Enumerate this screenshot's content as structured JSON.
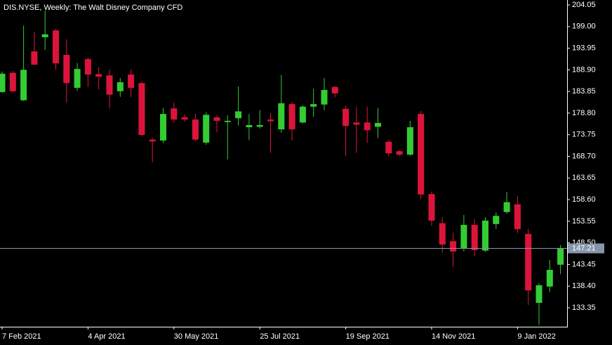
{
  "chart_data": {
    "type": "candlestick",
    "title": "DIS.NYSE, Weekly:  The Walt Disney Company CFD",
    "categories": [
      "7 Feb 2021",
      null,
      null,
      null,
      null,
      null,
      null,
      null,
      "4 Apr 2021",
      null,
      null,
      null,
      null,
      null,
      null,
      null,
      "30 May 2021",
      null,
      null,
      null,
      null,
      null,
      null,
      null,
      "25 Jul 2021",
      null,
      null,
      null,
      null,
      null,
      null,
      null,
      "19 Sep 2021",
      null,
      null,
      null,
      null,
      null,
      null,
      null,
      "14 Nov 2021",
      null,
      null,
      null,
      null,
      null,
      null,
      null,
      "9 Jan 2022",
      null,
      null,
      null,
      null
    ],
    "open": [
      183.7,
      188.2,
      181.8,
      193.2,
      196.5,
      198.1,
      192.4,
      184.7,
      191.4,
      187.9,
      187.6,
      183.9,
      187.8,
      185.8,
      172.6,
      172.4,
      179.9,
      177.8,
      177.3,
      171.9,
      177.8,
      176.7,
      177.6,
      175.5,
      175.6,
      177.3,
      175.0,
      180.9,
      176.6,
      180.3,
      180.8,
      184.9,
      179.8,
      176.6,
      176.6,
      175.6,
      172.1,
      169.9,
      169.1,
      178.6,
      159.9,
      153.1,
      148.9,
      147.3,
      152.7,
      146.7,
      152.9,
      155.7,
      157.5,
      150.6,
      134.5,
      138.3,
      143.4
    ],
    "high": [
      188.5,
      188.6,
      199.2,
      197.8,
      202.7,
      198.5,
      196.0,
      190.5,
      191.8,
      189.5,
      188.9,
      187.0,
      189.0,
      186.2,
      173.0,
      180.0,
      181.2,
      178.5,
      178.6,
      179.0,
      178.3,
      178.3,
      185.0,
      178.6,
      179.5,
      178.8,
      187.7,
      181.4,
      180.6,
      184.5,
      187.0,
      185.1,
      180.5,
      180.2,
      180.3,
      180.0,
      172.6,
      170.1,
      177.0,
      179.3,
      160.5,
      154.5,
      150.9,
      155.0,
      154.0,
      154.5,
      155.6,
      160.4,
      159.4,
      151.8,
      139.0,
      144.5,
      148.0
    ],
    "low": [
      183.5,
      183.6,
      181.6,
      190.0,
      193.5,
      189.0,
      181.2,
      184.0,
      184.9,
      184.3,
      179.9,
      182.6,
      182.6,
      173.4,
      167.3,
      171.8,
      176.5,
      176.8,
      172.2,
      171.4,
      174.3,
      168.0,
      175.9,
      172.5,
      175.2,
      169.5,
      174.2,
      172.4,
      176.4,
      177.9,
      179.5,
      182.5,
      168.7,
      169.5,
      171.8,
      173.0,
      168.7,
      168.7,
      168.8,
      158.7,
      152.5,
      146.2,
      142.8,
      146.5,
      145.4,
      146.4,
      151.8,
      155.3,
      150.8,
      134.0,
      129.3,
      137.0,
      141.2
    ],
    "close": [
      188.0,
      183.9,
      188.9,
      190.1,
      197.2,
      190.4,
      185.8,
      189.1,
      187.8,
      187.3,
      183.1,
      186.0,
      184.7,
      173.7,
      172.2,
      178.6,
      177.3,
      177.3,
      172.6,
      178.4,
      177.0,
      177.0,
      179.2,
      176.0,
      176.0,
      176.9,
      181.1,
      175.0,
      180.3,
      180.9,
      184.2,
      183.4,
      175.8,
      176.1,
      174.8,
      176.5,
      169.4,
      169.1,
      175.5,
      159.8,
      153.7,
      148.1,
      146.5,
      152.7,
      146.8,
      153.7,
      154.8,
      158.0,
      151.7,
      137.4,
      138.6,
      142.2,
      147.2
    ],
    "up_color": "#33cc33",
    "down_color": "#dc143c",
    "last_price": 147.21,
    "last_price_color": "#8696aa",
    "ylim": [
      128.92,
      205.2
    ],
    "yticks": [
      {
        "value": 133.35,
        "label": "133.35"
      },
      {
        "value": 138.4,
        "label": "138.40"
      },
      {
        "value": 143.45,
        "label": "143.45"
      },
      {
        "value": 148.5,
        "label": "148.50"
      },
      {
        "value": 153.55,
        "label": "153.55"
      },
      {
        "value": 158.6,
        "label": "158.60"
      },
      {
        "value": 163.65,
        "label": "163.65"
      },
      {
        "value": 168.7,
        "label": "168.70"
      },
      {
        "value": 173.75,
        "label": "173.75"
      },
      {
        "value": 178.8,
        "label": "178.80"
      },
      {
        "value": 183.85,
        "label": "183.85"
      },
      {
        "value": 188.9,
        "label": "188.90"
      },
      {
        "value": 193.95,
        "label": "193.95"
      },
      {
        "value": 199,
        "label": "199.00"
      },
      {
        "value": 204.05,
        "label": "204.05"
      }
    ]
  }
}
